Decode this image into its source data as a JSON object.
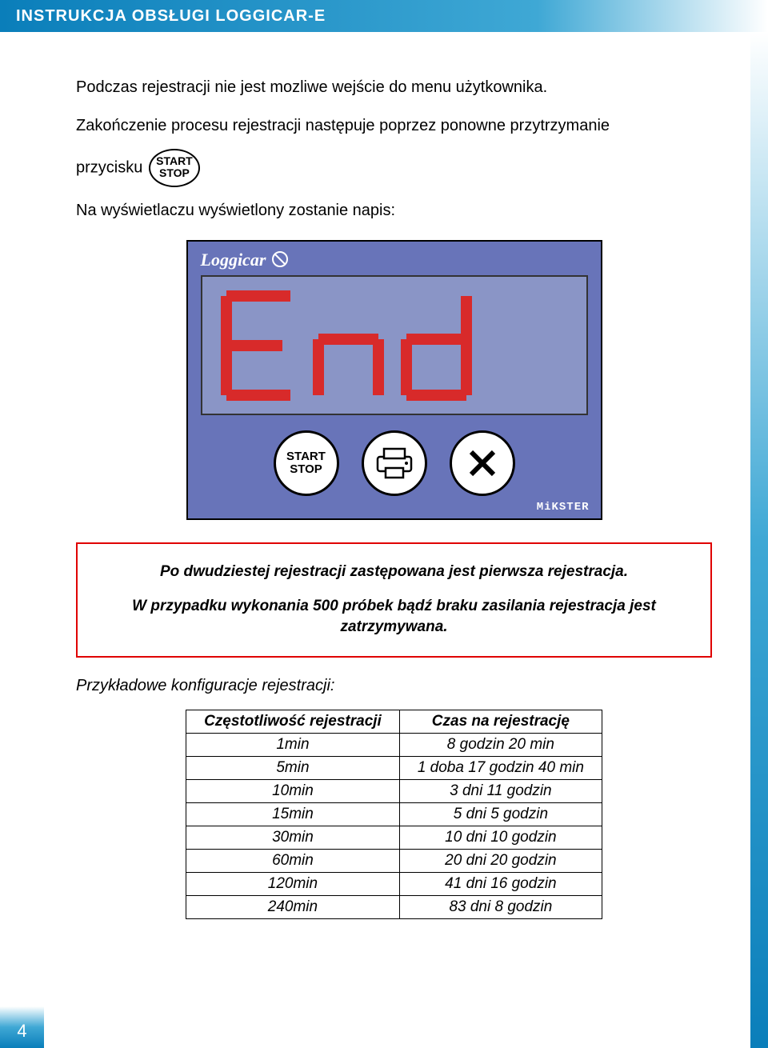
{
  "header": {
    "title": "INSTRUKCJA OBSŁUGI LOGGICAR-E"
  },
  "p1": "Podczas rejestracji nie jest mozliwe wejście do menu użytkownika.",
  "p2a": "Zakończenie procesu rejestracji następuje poprzez ponowne przytrzymanie",
  "p2b": "przycisku",
  "p3": "Na wyświetlaczu wyświetlony zostanie napis:",
  "startstop": {
    "line1": "START",
    "line2": "STOP"
  },
  "device": {
    "brand": "Loggicar",
    "display_text": "End",
    "display_color": "#d82a2a",
    "bg": "#6874b9",
    "lcd_bg": "#8a95c6",
    "mikster": "MiKSTER",
    "buttons": {
      "ss_line1": "START",
      "ss_line2": "STOP",
      "print_icon": "printer-icon",
      "cancel_icon": "x-icon"
    }
  },
  "redbox": {
    "line1": "Po dwudziestej rejestracji zastępowana jest pierwsza rejestracja.",
    "line2": "W przypadku wykonania 500 próbek bądź braku zasilania rejestracja jest zatrzymywana."
  },
  "subhead": "Przykładowe konfiguracje rejestracji:",
  "table": {
    "columns": [
      "Częstotliwość rejestracji",
      "Czas na rejestrację"
    ],
    "rows": [
      [
        "1min",
        "8 godzin 20 min"
      ],
      [
        "5min",
        "1 doba 17 godzin 40 min"
      ],
      [
        "10min",
        "3 dni 11 godzin"
      ],
      [
        "15min",
        "5 dni 5 godzin"
      ],
      [
        "30min",
        "10 dni 10 godzin"
      ],
      [
        "60min",
        "20 dni 20 godzin"
      ],
      [
        "120min",
        "41 dni 16 godzin"
      ],
      [
        "240min",
        "83 dni 8 godzin"
      ]
    ]
  },
  "page_number": "4"
}
